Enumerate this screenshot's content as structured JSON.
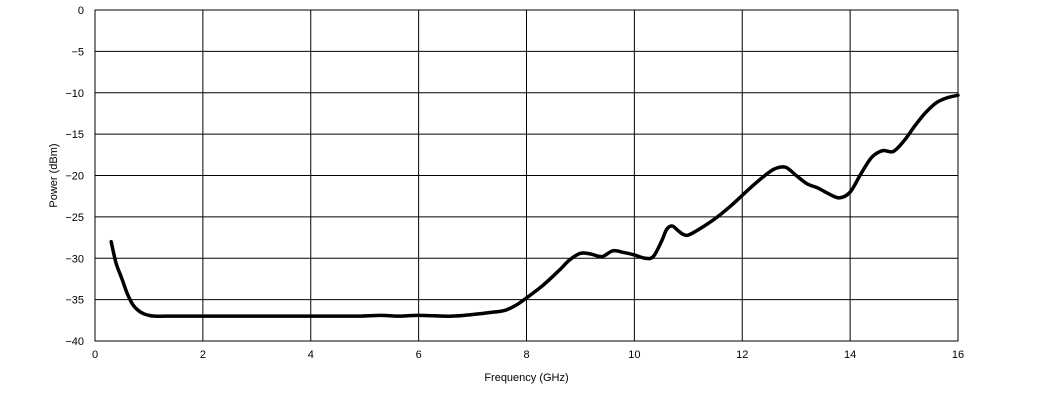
{
  "chart_data": {
    "type": "line",
    "title": "",
    "xlabel": "Frequency (GHz)",
    "ylabel": "Power (dBm)",
    "xlim": [
      0,
      16
    ],
    "ylim": [
      -40,
      0
    ],
    "xticks": [
      0,
      2,
      4,
      6,
      8,
      10,
      12,
      14,
      16
    ],
    "yticks": [
      0,
      -5,
      -10,
      -15,
      -20,
      -25,
      -30,
      -35,
      -40
    ],
    "xtick_labels": [
      "0",
      "2",
      "4",
      "6",
      "8",
      "10",
      "12",
      "14",
      "16"
    ],
    "ytick_labels": [
      "0",
      "−5",
      "−10",
      "−15",
      "−20",
      "−25",
      "−30",
      "−35",
      "−40"
    ],
    "grid": true,
    "legend": "none",
    "series": [
      {
        "color": "#000000",
        "x": [
          0.3,
          0.35,
          0.4,
          0.5,
          0.6,
          0.7,
          0.8,
          0.9,
          1.0,
          1.1,
          1.3,
          1.6,
          2.0,
          3.0,
          4.0,
          4.8,
          5.3,
          5.6,
          6.0,
          6.6,
          7.0,
          7.4,
          7.6,
          7.8,
          8.0,
          8.3,
          8.6,
          8.8,
          9.0,
          9.2,
          9.4,
          9.6,
          9.8,
          10.0,
          10.2,
          10.35,
          10.5,
          10.6,
          10.7,
          10.8,
          10.9,
          11.0,
          11.2,
          11.5,
          11.8,
          12.0,
          12.2,
          12.4,
          12.6,
          12.8,
          13.0,
          13.2,
          13.4,
          13.6,
          13.8,
          14.0,
          14.2,
          14.4,
          14.6,
          14.8,
          15.0,
          15.2,
          15.4,
          15.6,
          15.8,
          16.0
        ],
        "y": [
          -28.0,
          -29.5,
          -30.8,
          -32.5,
          -34.3,
          -35.6,
          -36.3,
          -36.7,
          -36.9,
          -37.0,
          -37.0,
          -37.0,
          -37.0,
          -37.0,
          -37.0,
          -37.0,
          -36.9,
          -37.0,
          -36.9,
          -37.0,
          -36.8,
          -36.5,
          -36.3,
          -35.7,
          -34.8,
          -33.3,
          -31.5,
          -30.2,
          -29.4,
          -29.5,
          -29.8,
          -29.1,
          -29.3,
          -29.6,
          -30.0,
          -29.8,
          -28.0,
          -26.5,
          -26.1,
          -26.6,
          -27.1,
          -27.2,
          -26.5,
          -25.2,
          -23.6,
          -22.4,
          -21.2,
          -20.1,
          -19.2,
          -19.0,
          -20.0,
          -21.0,
          -21.5,
          -22.2,
          -22.7,
          -22.0,
          -19.8,
          -17.8,
          -17.0,
          -17.1,
          -15.8,
          -14.0,
          -12.4,
          -11.2,
          -10.6,
          -10.3
        ]
      }
    ]
  }
}
